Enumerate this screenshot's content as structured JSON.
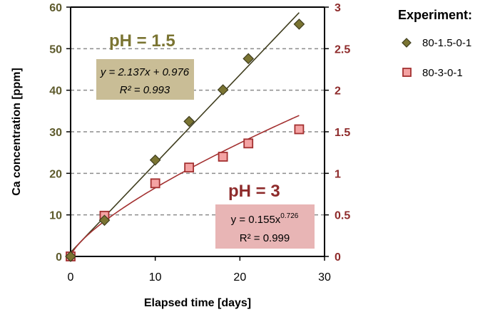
{
  "chart_data": {
    "type": "scatter",
    "xlabel": "Elapsed time [days]",
    "ylabel": "Ca concentration [ppm]",
    "xlim": [
      0,
      30
    ],
    "ylim_left": [
      0,
      60
    ],
    "ylim_right": [
      0,
      3
    ],
    "x_ticks": [
      "0",
      "10",
      "20",
      "30"
    ],
    "y_ticks_left": [
      "0",
      "10",
      "20",
      "30",
      "40",
      "50",
      "60"
    ],
    "y_ticks_right": [
      "0",
      "0.5",
      "1",
      "1.5",
      "2",
      "2.5",
      "3"
    ],
    "grid": "horizontal dashed",
    "legend_title": "Experiment:",
    "legend_position": "top-right outside plot",
    "colors": {
      "left_axis": "#5d5a2c",
      "right_axis": "#8e2b2b",
      "series1_marker": "#7a7432",
      "series1_line": "#3f3d1e",
      "series2_marker": "#f4a3a3",
      "series2_line": "#a33030",
      "box1_fill": "#c9bd96",
      "box2_fill": "#e8b5b5",
      "grid": "#8c8c8c"
    },
    "series": [
      {
        "name": "80-1.5-0-1",
        "marker": "diamond",
        "axis": "left",
        "x": [
          0,
          4,
          10,
          14,
          18,
          21,
          27
        ],
        "y": [
          0,
          8.7,
          23.2,
          32.5,
          40.1,
          47.6,
          55.9
        ],
        "fit": {
          "type": "linear",
          "slope": 2.137,
          "intercept": 0.976
        }
      },
      {
        "name": "80-3-0-1",
        "marker": "square",
        "axis": "right",
        "x": [
          0,
          4,
          10,
          14,
          18,
          21,
          27
        ],
        "y": [
          0,
          0.49,
          0.88,
          1.07,
          1.2,
          1.36,
          1.53
        ],
        "fit": {
          "type": "power",
          "coef": 0.155,
          "exponent": 0.726
        }
      }
    ],
    "annotations": {
      "ph1": "pH = 1.5",
      "ph2": "pH = 3",
      "eq1_line1": "y = 2.137x + 0.976",
      "eq1_line2": "R² = 0.993",
      "eq2_prefix": "y = 0.155x",
      "eq2_exp": "0.726",
      "eq2_line2": "R² = 0.999"
    }
  }
}
